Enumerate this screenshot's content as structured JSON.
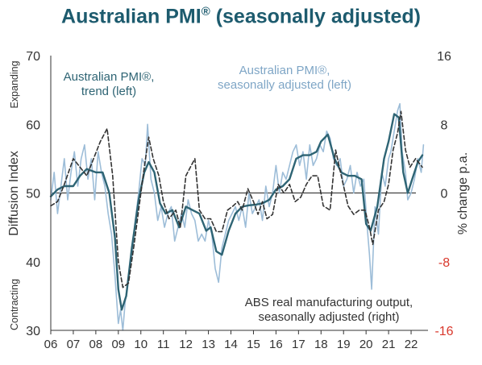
{
  "chart_data": {
    "type": "line",
    "title": "Australian PMI",
    "title_mark": "®",
    "title_suffix": " (seasonally adjusted)",
    "ylabel_left": "Diffusion Index",
    "ylabel_right": "% change p.a.",
    "left_annotation_top": "Expanding",
    "left_annotation_bottom": "Contracting",
    "x_tick_labels": [
      "06",
      "07",
      "08",
      "09",
      "10",
      "11",
      "12",
      "13",
      "14",
      "15",
      "16",
      "17",
      "18",
      "19",
      "20",
      "21",
      "22"
    ],
    "xlim": [
      2006.0,
      2022.75
    ],
    "ylim_left": [
      30,
      70
    ],
    "ylim_right": [
      -16,
      16
    ],
    "left_ticks": [
      "30",
      "40",
      "50",
      "60",
      "70"
    ],
    "right_ticks": [
      {
        "label": "16",
        "value": 16,
        "color": "#333333"
      },
      {
        "label": "8",
        "value": 8,
        "color": "#333333"
      },
      {
        "label": "0",
        "value": 0,
        "color": "#333333"
      },
      {
        "label": "-8",
        "value": -8,
        "color": "#d9372b"
      },
      {
        "label": "-16",
        "value": -16,
        "color": "#d9372b"
      }
    ],
    "reference_line_left": 50,
    "annotations": {
      "trend": [
        "Australian PMI®,",
        "trend (left)"
      ],
      "seasonal": [
        "Australian PMI®,",
        "seasonally adjusted (left)"
      ],
      "abs": [
        "ABS real manufacturing output,",
        "seasonally adjusted (right)"
      ]
    },
    "colors": {
      "trend": "#2e6474",
      "seasonal": "#9dbdd8",
      "abs": "#333333",
      "title": "#1d5b6e",
      "annotation_trend": "#2e6474",
      "annotation_seasonal": "#7fa6c6",
      "annotation_abs": "#333333"
    },
    "series": [
      {
        "name": "Australian PMI®, trend (left)",
        "axis": "left",
        "style": "solid",
        "x": [
          2006.0,
          2006.3,
          2006.6,
          2007.0,
          2007.3,
          2007.6,
          2008.0,
          2008.3,
          2008.6,
          2008.85,
          2009.0,
          2009.15,
          2009.35,
          2009.6,
          2009.9,
          2010.15,
          2010.35,
          2010.6,
          2010.85,
          2011.1,
          2011.4,
          2011.7,
          2012.0,
          2012.3,
          2012.6,
          2012.9,
          2013.1,
          2013.35,
          2013.6,
          2013.9,
          2014.2,
          2014.5,
          2014.8,
          2015.1,
          2015.4,
          2015.7,
          2016.0,
          2016.3,
          2016.6,
          2016.9,
          2017.2,
          2017.5,
          2017.8,
          2018.0,
          2018.3,
          2018.6,
          2018.9,
          2019.2,
          2019.5,
          2019.8,
          2020.0,
          2020.2,
          2020.5,
          2020.8,
          2021.0,
          2021.25,
          2021.45,
          2021.65,
          2021.85,
          2022.05,
          2022.3,
          2022.5
        ],
        "y": [
          49.5,
          50.5,
          51,
          51,
          52.5,
          53.5,
          53,
          53,
          50,
          43.5,
          36,
          33,
          35,
          42,
          49,
          53,
          54.5,
          53,
          48.5,
          47,
          47.5,
          45,
          48,
          47.5,
          47,
          44.5,
          45,
          41.5,
          41,
          44.5,
          47,
          48,
          48.2,
          48.3,
          48.5,
          49,
          50.5,
          51,
          52,
          55,
          55.5,
          55.5,
          56,
          57.5,
          58.5,
          55,
          53,
          52.5,
          52.5,
          52,
          45.5,
          44.5,
          48,
          55,
          57.5,
          61.5,
          61,
          53,
          50,
          52,
          54.5,
          55.5
        ]
      },
      {
        "name": "Australian PMI®, seasonally adjusted (left)",
        "axis": "left",
        "style": "solid",
        "x": [
          2006.0,
          2006.15,
          2006.3,
          2006.45,
          2006.6,
          2006.75,
          2006.9,
          2007.05,
          2007.2,
          2007.35,
          2007.5,
          2007.65,
          2007.8,
          2007.95,
          2008.1,
          2008.25,
          2008.4,
          2008.55,
          2008.7,
          2008.85,
          2009.0,
          2009.1,
          2009.2,
          2009.3,
          2009.45,
          2009.6,
          2009.75,
          2009.9,
          2010.05,
          2010.2,
          2010.3,
          2010.45,
          2010.6,
          2010.75,
          2010.9,
          2011.05,
          2011.2,
          2011.35,
          2011.5,
          2011.65,
          2011.8,
          2011.95,
          2012.1,
          2012.25,
          2012.4,
          2012.55,
          2012.7,
          2012.85,
          2013.0,
          2013.15,
          2013.3,
          2013.45,
          2013.6,
          2013.75,
          2013.9,
          2014.05,
          2014.2,
          2014.35,
          2014.5,
          2014.65,
          2014.8,
          2014.95,
          2015.1,
          2015.25,
          2015.4,
          2015.55,
          2015.7,
          2015.85,
          2016.0,
          2016.15,
          2016.3,
          2016.45,
          2016.6,
          2016.75,
          2016.9,
          2017.05,
          2017.2,
          2017.35,
          2017.5,
          2017.65,
          2017.8,
          2017.95,
          2018.1,
          2018.25,
          2018.4,
          2018.55,
          2018.7,
          2018.85,
          2019.0,
          2019.15,
          2019.3,
          2019.45,
          2019.6,
          2019.75,
          2019.9,
          2020.05,
          2020.15,
          2020.25,
          2020.4,
          2020.55,
          2020.7,
          2020.85,
          2021.0,
          2021.1,
          2021.25,
          2021.4,
          2021.5,
          2021.6,
          2021.75,
          2021.85,
          2022.0,
          2022.15,
          2022.3,
          2022.45,
          2022.55
        ],
        "y": [
          49,
          53,
          47,
          51,
          55,
          49,
          53,
          56,
          51,
          55,
          57,
          52,
          55,
          49,
          56,
          53,
          51,
          47,
          44,
          38,
          31,
          33,
          30,
          34,
          38,
          41,
          46,
          50,
          55,
          54,
          60,
          52,
          50,
          46,
          48,
          45,
          47,
          48,
          43,
          45,
          47,
          45,
          49,
          47,
          46,
          43,
          44,
          43,
          46,
          44,
          39,
          37,
          42,
          44,
          46,
          47,
          48,
          46,
          48,
          45,
          50,
          47,
          48,
          49,
          46,
          51,
          48,
          50,
          54,
          50,
          53,
          52,
          54,
          56,
          57,
          54,
          56,
          52,
          57,
          54,
          55,
          57,
          56,
          59,
          58,
          55,
          54,
          55,
          51,
          52,
          54,
          50,
          53,
          51,
          52,
          45,
          41,
          36,
          48,
          44,
          53,
          51,
          55,
          56,
          59,
          62,
          63,
          56,
          53,
          49,
          50,
          52,
          55,
          53,
          57
        ]
      },
      {
        "name": "ABS real manufacturing output, seasonally adjusted (right)",
        "axis": "right",
        "style": "dashed",
        "x": [
          2006.0,
          2006.3,
          2006.6,
          2007.0,
          2007.3,
          2007.6,
          2007.9,
          2008.2,
          2008.5,
          2008.75,
          2009.0,
          2009.2,
          2009.45,
          2009.7,
          2009.95,
          2010.15,
          2010.35,
          2010.55,
          2010.8,
          2011.0,
          2011.25,
          2011.55,
          2011.75,
          2012.0,
          2012.2,
          2012.4,
          2012.6,
          2012.85,
          2013.1,
          2013.35,
          2013.6,
          2013.85,
          2014.1,
          2014.3,
          2014.5,
          2014.75,
          2015.0,
          2015.2,
          2015.4,
          2015.6,
          2015.85,
          2016.1,
          2016.35,
          2016.6,
          2016.85,
          2017.1,
          2017.35,
          2017.6,
          2017.85,
          2018.1,
          2018.4,
          2018.65,
          2018.9,
          2019.2,
          2019.45,
          2019.7,
          2019.95,
          2020.15,
          2020.3,
          2020.55,
          2020.8,
          2021.0,
          2021.2,
          2021.4,
          2021.55,
          2021.75,
          2021.95,
          2022.2,
          2022.5
        ],
        "y": [
          -1.5,
          -1,
          1,
          4,
          3,
          2,
          4,
          6,
          7.5,
          2,
          -8,
          -11,
          -10.5,
          -6,
          -1,
          3,
          6.5,
          4,
          2,
          -1,
          -3,
          -2,
          -4,
          2,
          3,
          4,
          -2,
          -3,
          -3,
          -4.5,
          -4.5,
          -2,
          -1.5,
          -1,
          -2,
          0.5,
          -1,
          -2.5,
          -1,
          -3,
          -2.5,
          1,
          0,
          1,
          -1,
          -0.5,
          1,
          2,
          2,
          -1.5,
          -2,
          5,
          2,
          -1.5,
          -2.5,
          -2,
          -2,
          -4,
          -6,
          -2,
          -1,
          1,
          5,
          7,
          9.5,
          5,
          3,
          4,
          3
        ]
      }
    ]
  }
}
